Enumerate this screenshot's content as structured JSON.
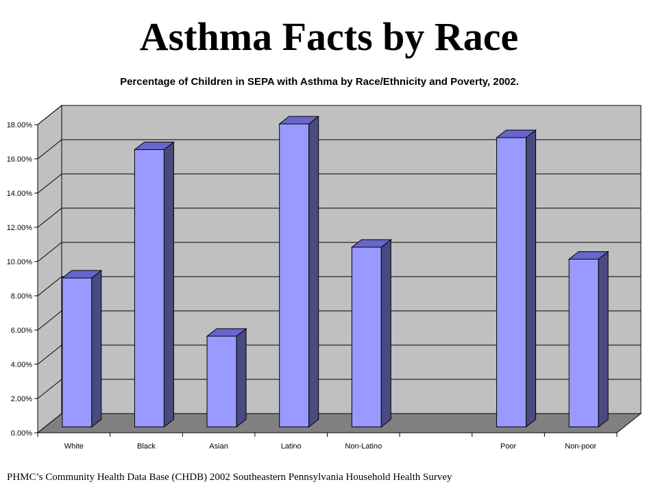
{
  "slide": {
    "title": "Asthma Facts by Race",
    "source": "PHMC’s Community Health Data Base (CHDB) 2002 Southeastern Pennsylvania Household Health Survey"
  },
  "chart_data": {
    "type": "bar",
    "title": "Percentage of Children in SEPA with Asthma by Race/Ethnicity and Poverty, 2002.",
    "xlabel": "",
    "ylabel": "",
    "categories": [
      "White",
      "Black",
      "Asian",
      "Latino",
      "Non-Latino",
      "",
      "Poor",
      "Non-poor"
    ],
    "values": [
      0.087,
      0.162,
      0.053,
      0.177,
      0.105,
      null,
      0.169,
      0.098
    ],
    "ylim": [
      0,
      0.18
    ],
    "yticks": [
      "0.00%",
      "2.00%",
      "4.00%",
      "6.00%",
      "8.00%",
      "10.00%",
      "12.00%",
      "14.00%",
      "16.00%",
      "18.00%"
    ],
    "grid": true,
    "legend": "none",
    "style": "3d-column",
    "colors": {
      "bar_front": "#9999ff",
      "bar_side": "#4a4a80",
      "bar_top": "#6666cc",
      "wall": "#c0c0c0",
      "floor": "#808080"
    }
  }
}
